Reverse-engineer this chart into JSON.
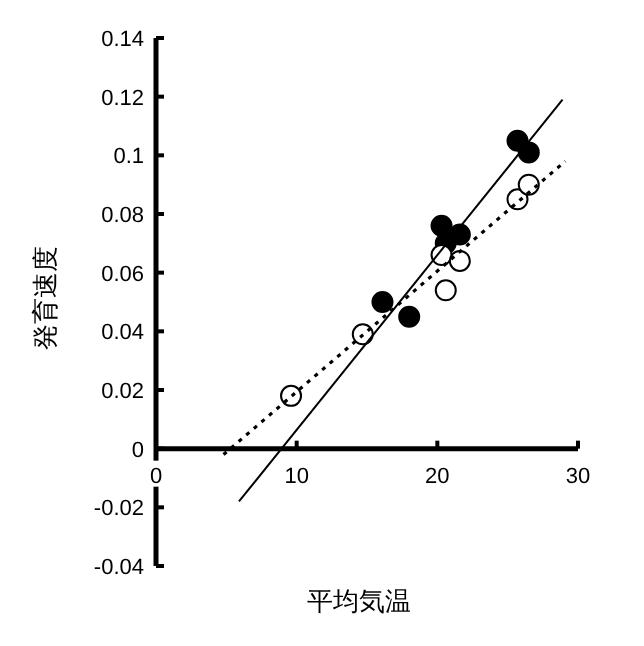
{
  "chart_data": {
    "type": "scatter",
    "xlabel": "平均気温",
    "ylabel": "発育速度",
    "xlim": [
      0,
      30
    ],
    "ylim": [
      -0.04,
      0.14
    ],
    "xticks": [
      0,
      10,
      20,
      30
    ],
    "yticks": [
      {
        "value": -0.04,
        "label": "-0.04"
      },
      {
        "value": -0.02,
        "label": "-0.02"
      },
      0,
      0.02,
      0.04,
      0.06,
      0.08,
      {
        "value": 0.1,
        "label": "0.1"
      },
      0.12,
      0.14
    ],
    "grid": false,
    "series": [
      {
        "marker": "circle",
        "color": "#000000",
        "x": [
          16.1,
          18.0,
          20.3,
          20.6,
          21.6,
          25.7,
          26.5
        ],
        "values": [
          0.05,
          0.045,
          0.076,
          0.07,
          0.073,
          0.105,
          0.101
        ]
      },
      {
        "marker": "circle",
        "color": "#ffffff",
        "x": [
          9.6,
          14.7,
          20.3,
          20.6,
          21.6,
          25.7,
          26.5
        ],
        "values": [
          0.018,
          0.039,
          0.066,
          0.054,
          0.064,
          0.085,
          0.09
        ]
      },
      {
        "type": "line",
        "line_style": "solid",
        "color": "#000000",
        "x": [
          5.9,
          28.9
        ],
        "values": [
          -0.018,
          0.119
        ]
      },
      {
        "type": "line",
        "line_style": "dotted",
        "color": "#000000",
        "x": [
          4.8,
          29.1
        ],
        "values": [
          -0.002,
          0.098
        ]
      }
    ]
  }
}
